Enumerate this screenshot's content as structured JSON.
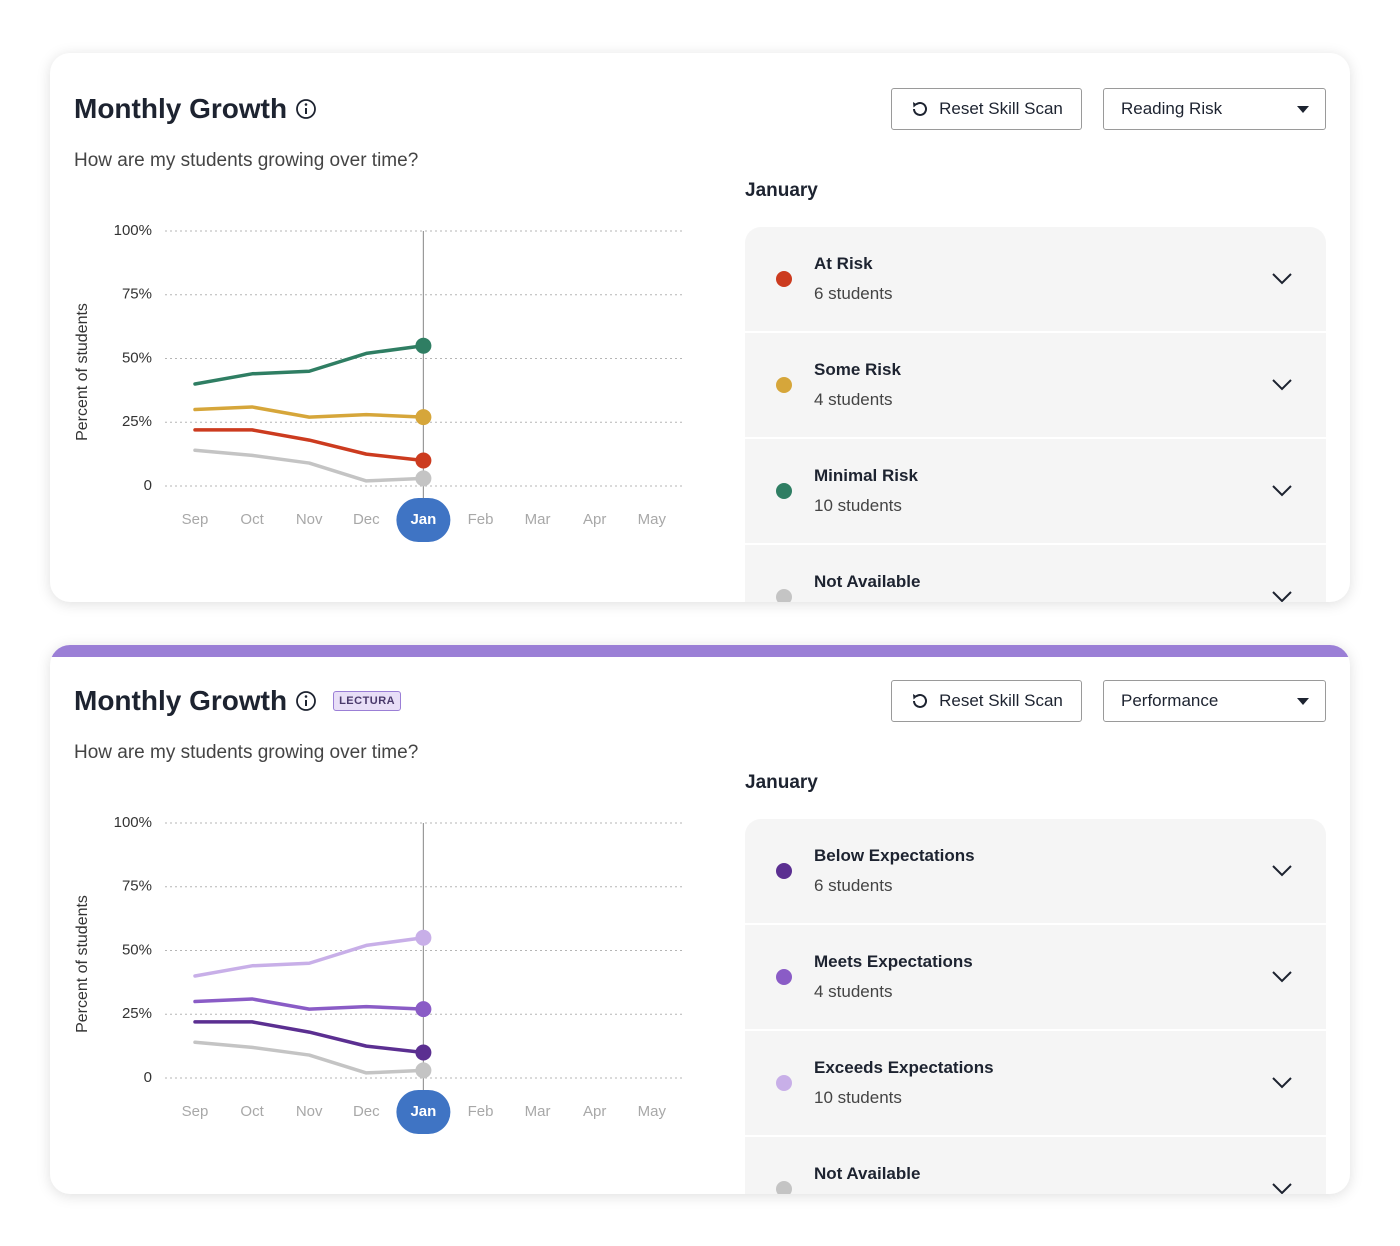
{
  "cards": [
    {
      "title": "Monthly Growth",
      "subtitle": "How are my students growing over time?",
      "reset_button": "Reset Skill Scan",
      "dropdown": "Reading Risk",
      "month": "January"
    },
    {
      "title": "Monthly Growth",
      "badge": "LECTURA",
      "subtitle": "How are my students growing over time?",
      "reset_button": "Reset Skill Scan",
      "dropdown": "Performance",
      "month": "January"
    }
  ],
  "chart_data": [
    {
      "type": "line",
      "y_label": "Percent of students",
      "categories": [
        "Sep",
        "Oct",
        "Nov",
        "Dec",
        "Jan",
        "Feb",
        "Mar",
        "Apr",
        "May"
      ],
      "selected_index": 4,
      "ylim": [
        0,
        100
      ],
      "yticks": [
        0,
        {
          "value": 25,
          "label": "25%"
        },
        {
          "value": 50,
          "label": "50%"
        },
        {
          "value": 75,
          "label": "75%"
        },
        {
          "value": 100,
          "label": "100%"
        }
      ],
      "grid": true,
      "series": [
        {
          "name": "At Risk",
          "count": "6 students",
          "color": "#cc3b1f",
          "values": [
            22,
            22,
            18,
            12.5,
            10,
            null,
            null,
            null,
            null
          ]
        },
        {
          "name": "Some Risk",
          "count": "4 students",
          "color": "#d6a63a",
          "values": [
            30,
            31,
            27,
            28,
            27,
            null,
            null,
            null,
            null
          ]
        },
        {
          "name": "Minimal Risk",
          "count": "10 students",
          "color": "#2f7e63",
          "values": [
            40,
            44,
            45,
            52,
            55,
            null,
            null,
            null,
            null
          ]
        },
        {
          "name": "Not Available",
          "color": "#c4c4c4",
          "values": [
            14,
            12,
            9,
            2,
            3,
            null,
            null,
            null,
            null
          ]
        }
      ]
    },
    {
      "type": "line",
      "y_label": "Percent of students",
      "categories": [
        "Sep",
        "Oct",
        "Nov",
        "Dec",
        "Jan",
        "Feb",
        "Mar",
        "Apr",
        "May"
      ],
      "selected_index": 4,
      "ylim": [
        0,
        100
      ],
      "yticks": [
        0,
        {
          "value": 25,
          "label": "25%"
        },
        {
          "value": 50,
          "label": "50%"
        },
        {
          "value": 75,
          "label": "75%"
        },
        {
          "value": 100,
          "label": "100%"
        }
      ],
      "grid": true,
      "series": [
        {
          "name": "Below Expectations",
          "count": "6 students",
          "color": "#5b2f91",
          "values": [
            22,
            22,
            18,
            12.5,
            10,
            null,
            null,
            null,
            null
          ]
        },
        {
          "name": "Meets Expectations",
          "count": "4 students",
          "color": "#8a5cc6",
          "values": [
            30,
            31,
            27,
            28,
            27,
            null,
            null,
            null,
            null
          ]
        },
        {
          "name": "Exceeds Expectations",
          "count": "10 students",
          "color": "#c8afe8",
          "values": [
            40,
            44,
            45,
            52,
            55,
            null,
            null,
            null,
            null
          ]
        },
        {
          "name": "Not Available",
          "color": "#c4c4c4",
          "values": [
            14,
            12,
            9,
            2,
            3,
            null,
            null,
            null,
            null
          ]
        }
      ]
    }
  ]
}
